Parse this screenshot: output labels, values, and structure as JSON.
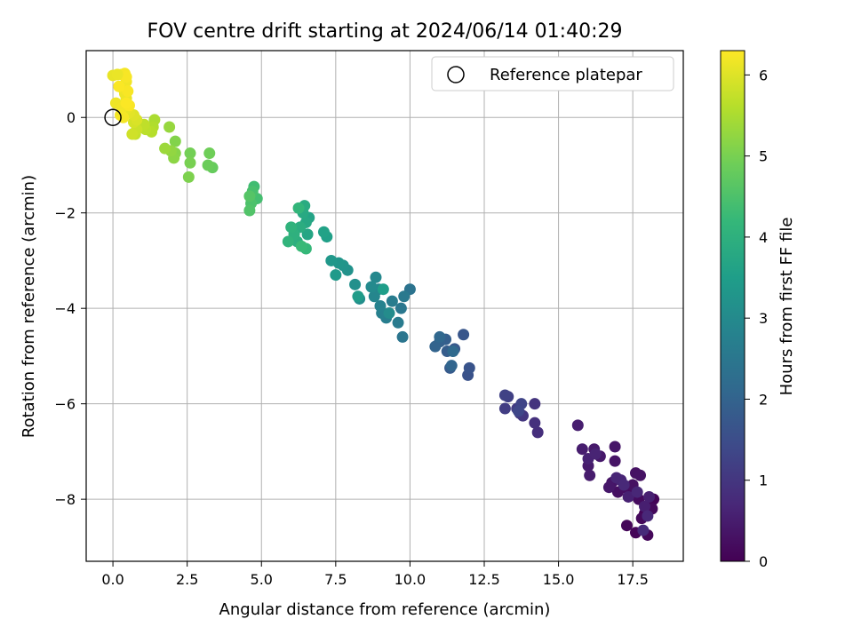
{
  "chart_data": {
    "type": "scatter",
    "title": "FOV centre drift starting at 2024/06/14 01:40:29",
    "xlabel": "Angular distance from reference (arcmin)",
    "ylabel": "Rotation from reference (arcmin)",
    "xlim": [
      -0.9,
      19.2
    ],
    "ylim": [
      -9.3,
      1.4
    ],
    "x_ticks": [
      0.0,
      2.5,
      5.0,
      7.5,
      10.0,
      12.5,
      15.0,
      17.5
    ],
    "x_tick_labels": [
      "0.0",
      "2.5",
      "5.0",
      "7.5",
      "10.0",
      "12.5",
      "15.0",
      "17.5"
    ],
    "y_ticks": [
      0,
      -2,
      -4,
      -6,
      -8
    ],
    "y_tick_labels": [
      "0",
      "−2",
      "−4",
      "−6",
      "−8"
    ],
    "grid": true,
    "legend": {
      "placement": "top-right",
      "entries": [
        {
          "label": "Reference platepar",
          "marker": "open-circle"
        }
      ]
    },
    "reference_point": {
      "x": 0.0,
      "y": 0.0
    },
    "colorbar": {
      "label": "Hours from first FF file",
      "colormap": "viridis",
      "range": [
        0,
        6.3
      ],
      "ticks": [
        0,
        1,
        2,
        3,
        4,
        5,
        6
      ],
      "tick_labels": [
        "0",
        "1",
        "2",
        "3",
        "4",
        "5",
        "6"
      ]
    },
    "colormap_stops": [
      "#440154",
      "#482878",
      "#3e4989",
      "#31688e",
      "#26828e",
      "#1f9e89",
      "#35b779",
      "#6ece58",
      "#b5de2b",
      "#fde725"
    ],
    "series": [
      {
        "points": [
          [
            18.1,
            -8.1,
            0.02
          ],
          [
            17.9,
            -8.3,
            0.04
          ],
          [
            18.2,
            -8.0,
            0.06
          ],
          [
            17.6,
            -8.7,
            0.08
          ],
          [
            17.3,
            -8.55,
            0.1
          ],
          [
            18.0,
            -8.75,
            0.12
          ],
          [
            17.8,
            -8.4,
            0.14
          ],
          [
            18.15,
            -8.2,
            0.16
          ],
          [
            17.7,
            -8.0,
            0.18
          ],
          [
            17.55,
            -7.9,
            0.2
          ],
          [
            17.4,
            -7.8,
            0.22
          ],
          [
            17.2,
            -7.75,
            0.24
          ],
          [
            17.0,
            -7.85,
            0.26
          ],
          [
            17.5,
            -7.7,
            0.28
          ],
          [
            17.6,
            -7.45,
            0.3
          ],
          [
            17.75,
            -7.5,
            0.32
          ],
          [
            16.9,
            -7.2,
            0.34
          ],
          [
            16.8,
            -7.65,
            0.36
          ],
          [
            16.9,
            -6.9,
            0.38
          ],
          [
            16.7,
            -7.75,
            0.4
          ],
          [
            16.4,
            -7.1,
            0.42
          ],
          [
            16.2,
            -6.95,
            0.44
          ],
          [
            16.0,
            -7.3,
            0.46
          ],
          [
            16.05,
            -7.5,
            0.48
          ],
          [
            15.8,
            -6.95,
            0.5
          ],
          [
            15.65,
            -6.45,
            0.52
          ],
          [
            17.9,
            -8.15,
            0.54
          ],
          [
            18.05,
            -7.95,
            0.56
          ],
          [
            17.35,
            -7.95,
            0.58
          ],
          [
            16.0,
            -7.15,
            0.6
          ],
          [
            16.25,
            -7.05,
            0.62
          ],
          [
            17.1,
            -7.6,
            0.64
          ],
          [
            16.95,
            -7.55,
            0.66
          ],
          [
            17.65,
            -7.85,
            0.68
          ],
          [
            18.0,
            -8.35,
            0.7
          ],
          [
            17.2,
            -7.7,
            0.72
          ],
          [
            17.85,
            -8.65,
            0.74
          ],
          [
            14.3,
            -6.6,
            0.85
          ],
          [
            14.2,
            -6.4,
            0.9
          ],
          [
            14.2,
            -6.0,
            0.95
          ],
          [
            13.8,
            -6.25,
            1.0
          ],
          [
            13.7,
            -6.2,
            1.05
          ],
          [
            13.6,
            -6.1,
            1.1
          ],
          [
            13.2,
            -6.1,
            1.15
          ],
          [
            13.3,
            -5.85,
            1.2
          ],
          [
            13.2,
            -5.82,
            1.25
          ],
          [
            13.75,
            -6.0,
            1.3
          ],
          [
            13.65,
            -6.15,
            1.35
          ],
          [
            11.95,
            -5.4,
            1.6
          ],
          [
            12.0,
            -5.25,
            1.65
          ],
          [
            11.8,
            -4.55,
            1.7
          ],
          [
            11.5,
            -4.85,
            1.75
          ],
          [
            11.35,
            -5.25,
            1.8
          ],
          [
            11.25,
            -4.9,
            1.85
          ],
          [
            11.2,
            -4.65,
            1.9
          ],
          [
            11.0,
            -4.7,
            1.95
          ],
          [
            10.85,
            -4.8,
            2.0
          ],
          [
            11.4,
            -5.2,
            2.05
          ],
          [
            11.0,
            -4.6,
            2.1
          ],
          [
            11.45,
            -4.9,
            2.15
          ],
          [
            10.0,
            -3.6,
            2.4
          ],
          [
            9.75,
            -4.6,
            2.45
          ],
          [
            9.7,
            -4.0,
            2.5
          ],
          [
            9.8,
            -3.75,
            2.55
          ],
          [
            9.6,
            -4.3,
            2.6
          ],
          [
            9.4,
            -3.85,
            2.65
          ],
          [
            9.2,
            -4.2,
            2.7
          ],
          [
            9.05,
            -4.1,
            2.75
          ],
          [
            9.0,
            -3.95,
            2.8
          ],
          [
            8.95,
            -3.6,
            2.85
          ],
          [
            8.8,
            -3.75,
            2.9
          ],
          [
            8.85,
            -3.35,
            2.95
          ],
          [
            8.7,
            -3.55,
            3.0
          ],
          [
            9.3,
            -4.1,
            3.05
          ],
          [
            8.3,
            -3.8,
            3.1
          ],
          [
            8.15,
            -3.5,
            3.15
          ],
          [
            7.9,
            -3.2,
            3.2
          ],
          [
            7.75,
            -3.1,
            3.25
          ],
          [
            7.6,
            -3.05,
            3.3
          ],
          [
            7.35,
            -3.0,
            3.35
          ],
          [
            7.5,
            -3.3,
            3.4
          ],
          [
            8.25,
            -3.75,
            3.45
          ],
          [
            9.1,
            -3.6,
            3.5
          ],
          [
            7.2,
            -2.5,
            3.55
          ],
          [
            7.1,
            -2.4,
            3.6
          ],
          [
            6.6,
            -2.1,
            3.65
          ],
          [
            6.55,
            -2.45,
            3.7
          ],
          [
            6.5,
            -2.2,
            3.75
          ],
          [
            6.4,
            -2.0,
            3.8
          ],
          [
            6.45,
            -1.85,
            3.85
          ],
          [
            6.3,
            -2.3,
            3.9
          ],
          [
            6.2,
            -2.6,
            3.95
          ],
          [
            6.1,
            -2.45,
            4.0
          ],
          [
            6.0,
            -2.3,
            4.05
          ],
          [
            5.9,
            -2.6,
            4.1
          ],
          [
            6.25,
            -1.9,
            4.15
          ],
          [
            6.5,
            -2.75,
            4.2
          ],
          [
            6.35,
            -2.7,
            4.25
          ],
          [
            4.75,
            -1.45,
            4.35
          ],
          [
            4.85,
            -1.7,
            4.4
          ],
          [
            4.7,
            -1.55,
            4.45
          ],
          [
            4.65,
            -1.8,
            4.5
          ],
          [
            4.6,
            -1.95,
            4.55
          ],
          [
            4.6,
            -1.65,
            4.6
          ],
          [
            3.35,
            -1.05,
            4.8
          ],
          [
            3.2,
            -1.0,
            4.85
          ],
          [
            3.25,
            -0.75,
            4.9
          ],
          [
            2.6,
            -0.75,
            4.95
          ],
          [
            2.6,
            -0.95,
            5.0
          ],
          [
            2.55,
            -1.25,
            5.05
          ],
          [
            2.1,
            -0.5,
            5.1
          ],
          [
            2.1,
            -0.75,
            5.15
          ],
          [
            2.05,
            -0.85,
            5.2
          ],
          [
            1.95,
            -0.7,
            5.25
          ],
          [
            1.9,
            -0.2,
            5.3
          ],
          [
            1.75,
            -0.65,
            5.35
          ],
          [
            1.4,
            -0.05,
            5.5
          ],
          [
            1.35,
            -0.2,
            5.55
          ],
          [
            1.3,
            -0.3,
            5.6
          ],
          [
            1.1,
            -0.25,
            5.65
          ],
          [
            1.05,
            -0.15,
            5.7
          ],
          [
            0.75,
            -0.35,
            5.75
          ],
          [
            0.8,
            -0.25,
            5.8
          ],
          [
            0.65,
            -0.35,
            5.85
          ],
          [
            0.7,
            -0.1,
            5.9
          ],
          [
            0.8,
            -0.05,
            5.95
          ],
          [
            0.7,
            0.05,
            6.0
          ],
          [
            0.55,
            0.1,
            6.05
          ],
          [
            0.5,
            0.2,
            6.1
          ],
          [
            0.45,
            0.4,
            6.12
          ],
          [
            0.4,
            0.5,
            6.14
          ],
          [
            0.35,
            0.6,
            6.16
          ],
          [
            0.45,
            0.75,
            6.18
          ],
          [
            0.3,
            0.9,
            6.2
          ],
          [
            0.4,
            0.92,
            6.22
          ],
          [
            0.45,
            0.85,
            6.24
          ],
          [
            0.0,
            0.88,
            6.1
          ],
          [
            0.15,
            0.9,
            6.12
          ],
          [
            0.1,
            0.3,
            6.15
          ],
          [
            0.3,
            0.2,
            6.18
          ],
          [
            0.25,
            0.05,
            6.2
          ],
          [
            0.35,
            0.0,
            6.22
          ],
          [
            0.5,
            0.55,
            6.25
          ],
          [
            0.55,
            0.25,
            6.26
          ],
          [
            0.2,
            0.65,
            6.27
          ],
          [
            0.45,
            0.3,
            6.28
          ]
        ]
      }
    ]
  }
}
